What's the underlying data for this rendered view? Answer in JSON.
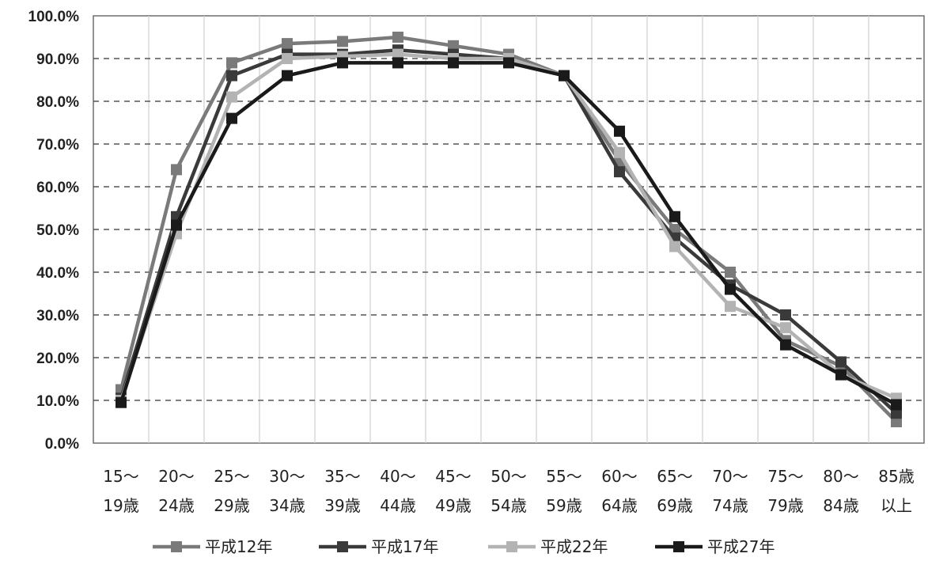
{
  "chart_data": {
    "type": "line",
    "title": "",
    "xlabel": "",
    "ylabel": "",
    "ylim": [
      0,
      100
    ],
    "yticks": [
      "0.0%",
      "10.0%",
      "20.0%",
      "30.0%",
      "40.0%",
      "50.0%",
      "60.0%",
      "70.0%",
      "80.0%",
      "90.0%",
      "100.0%"
    ],
    "categories": [
      [
        "15～",
        "19歳"
      ],
      [
        "20～",
        "24歳"
      ],
      [
        "25～",
        "29歳"
      ],
      [
        "30～",
        "34歳"
      ],
      [
        "35～",
        "39歳"
      ],
      [
        "40～",
        "44歳"
      ],
      [
        "45～",
        "49歳"
      ],
      [
        "50～",
        "54歳"
      ],
      [
        "55～",
        "59歳"
      ],
      [
        "60～",
        "64歳"
      ],
      [
        "65～",
        "69歳"
      ],
      [
        "70～",
        "74歳"
      ],
      [
        "75～",
        "79歳"
      ],
      [
        "80～",
        "84歳"
      ],
      [
        "85歳",
        "以上"
      ]
    ],
    "grid": true,
    "legend_position": "bottom",
    "series": [
      {
        "name": "平成12年",
        "color": "#7a7a7a",
        "values": [
          12.5,
          64,
          89,
          93.5,
          94,
          95,
          93,
          91,
          86,
          66,
          50,
          40,
          24,
          18,
          5
        ]
      },
      {
        "name": "平成17年",
        "color": "#3a3a3a",
        "values": [
          10.5,
          53,
          86,
          91,
          91,
          92,
          91,
          90,
          86,
          63.5,
          48,
          37,
          30,
          19,
          7
        ]
      },
      {
        "name": "平成22年",
        "color": "#b3b3b3",
        "values": [
          10,
          49,
          81,
          90,
          90.5,
          91,
          90,
          90,
          86,
          68,
          46,
          32,
          27,
          16,
          10.5
        ]
      },
      {
        "name": "平成27年",
        "color": "#1a1a1a",
        "values": [
          9.5,
          51,
          76,
          86,
          89,
          89,
          89,
          89,
          86,
          73,
          53,
          36,
          23,
          16,
          9
        ]
      }
    ]
  }
}
